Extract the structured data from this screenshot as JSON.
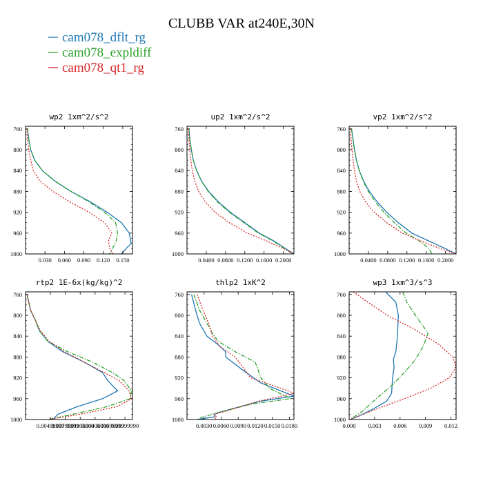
{
  "figure": {
    "title": "CLUBB VAR at240E,30N",
    "legend": [
      {
        "label": "cam078_dflt_rg",
        "color": "#1f77b4"
      },
      {
        "label": "cam078_expldiff",
        "color": "#2ca02c"
      },
      {
        "label": "cam078_qt1_rg",
        "color": "#d62728"
      }
    ]
  },
  "chart_data": [
    {
      "type": "line",
      "title": "wp2  1xm^2/s^2",
      "xlim": [
        0.0,
        0.165
      ],
      "ylim": [
        1000,
        755
      ],
      "x_ticks": [
        0.03,
        0.06,
        0.09,
        0.12,
        0.15
      ],
      "x_tick_labels": [
        "0.030",
        "0.060",
        "0.090",
        "0.120",
        "0.150"
      ],
      "y_ticks": [
        760,
        800,
        840,
        880,
        920,
        960,
        1000
      ],
      "series": [
        {
          "name": "cam078_dflt_rg",
          "x": [
            0.003,
            0.005,
            0.008,
            0.014,
            0.026,
            0.045,
            0.07,
            0.1,
            0.126,
            0.148,
            0.16,
            0.163,
            0.155,
            0.148
          ],
          "y": [
            760,
            780,
            800,
            820,
            840,
            860,
            880,
            900,
            920,
            940,
            960,
            980,
            990,
            1000
          ]
        },
        {
          "name": "cam078_expldiff",
          "x": [
            0.003,
            0.005,
            0.008,
            0.014,
            0.026,
            0.045,
            0.07,
            0.098,
            0.122,
            0.139,
            0.142,
            0.14,
            0.134,
            0.13
          ],
          "y": [
            760,
            780,
            800,
            820,
            840,
            860,
            880,
            900,
            920,
            940,
            960,
            975,
            990,
            1000
          ]
        },
        {
          "name": "cam078_qt1_rg",
          "x": [
            0.002,
            0.003,
            0.005,
            0.008,
            0.012,
            0.022,
            0.042,
            0.068,
            0.098,
            0.122,
            0.133,
            0.128,
            0.13,
            0.135
          ],
          "y": [
            760,
            780,
            800,
            820,
            840,
            860,
            880,
            900,
            920,
            940,
            960,
            975,
            990,
            1000
          ]
        }
      ]
    },
    {
      "type": "line",
      "title": "up2  1xm^2/s^2",
      "xlim": [
        0.0,
        0.222
      ],
      "ylim": [
        1000,
        755
      ],
      "x_ticks": [
        0.04,
        0.08,
        0.12,
        0.16,
        0.2
      ],
      "x_tick_labels": [
        "0.0400",
        "0.0800",
        "0.1200",
        "0.1600",
        "0.2000"
      ],
      "y_ticks": [
        760,
        800,
        840,
        880,
        920,
        960,
        1000
      ],
      "series": [
        {
          "name": "cam078_dflt_rg",
          "x": [
            0.004,
            0.006,
            0.009,
            0.013,
            0.02,
            0.03,
            0.045,
            0.065,
            0.09,
            0.12,
            0.15,
            0.18,
            0.205,
            0.222
          ],
          "y": [
            760,
            780,
            800,
            820,
            840,
            860,
            880,
            900,
            920,
            940,
            960,
            975,
            990,
            1000
          ]
        },
        {
          "name": "cam078_expldiff",
          "x": [
            0.004,
            0.006,
            0.009,
            0.013,
            0.02,
            0.03,
            0.044,
            0.063,
            0.088,
            0.118,
            0.148,
            0.178,
            0.203,
            0.22
          ],
          "y": [
            760,
            780,
            800,
            820,
            840,
            860,
            880,
            900,
            920,
            940,
            960,
            975,
            990,
            1000
          ]
        },
        {
          "name": "cam078_qt1_rg",
          "x": [
            0.003,
            0.004,
            0.006,
            0.008,
            0.011,
            0.016,
            0.024,
            0.038,
            0.058,
            0.088,
            0.125,
            0.165,
            0.2,
            0.222
          ],
          "y": [
            760,
            780,
            800,
            820,
            840,
            860,
            880,
            900,
            920,
            940,
            960,
            975,
            990,
            1000
          ]
        }
      ]
    },
    {
      "type": "line",
      "title": "vp2  1xm^2/s^2",
      "xlim": [
        0.0,
        0.222
      ],
      "ylim": [
        1000,
        755
      ],
      "x_ticks": [
        0.04,
        0.08,
        0.12,
        0.16,
        0.2
      ],
      "x_tick_labels": [
        "0.0400",
        "0.0800",
        "0.1200",
        "0.1600",
        "0.2000"
      ],
      "y_ticks": [
        760,
        800,
        840,
        880,
        920,
        960,
        1000
      ],
      "series": [
        {
          "name": "cam078_dflt_rg",
          "x": [
            0.005,
            0.008,
            0.011,
            0.015,
            0.021,
            0.03,
            0.042,
            0.058,
            0.078,
            0.102,
            0.13,
            0.165,
            0.2,
            0.222
          ],
          "y": [
            760,
            780,
            800,
            820,
            840,
            860,
            880,
            900,
            920,
            940,
            960,
            975,
            990,
            1000
          ]
        },
        {
          "name": "cam078_expldiff",
          "x": [
            0.005,
            0.008,
            0.011,
            0.015,
            0.021,
            0.029,
            0.04,
            0.054,
            0.072,
            0.094,
            0.118,
            0.146,
            0.166,
            0.172
          ],
          "y": [
            760,
            780,
            800,
            820,
            840,
            860,
            880,
            900,
            920,
            940,
            960,
            975,
            990,
            1000
          ]
        },
        {
          "name": "cam078_qt1_rg",
          "x": [
            0.003,
            0.004,
            0.006,
            0.008,
            0.011,
            0.015,
            0.022,
            0.034,
            0.052,
            0.078,
            0.11,
            0.148,
            0.19,
            0.222
          ],
          "y": [
            760,
            780,
            800,
            820,
            840,
            860,
            880,
            900,
            920,
            940,
            960,
            975,
            990,
            1000
          ]
        }
      ]
    },
    {
      "type": "line",
      "title": "rtp2  1E-6x(kg/kg)^2",
      "xlim": [
        0.0,
        0.0215
      ],
      "ylim": [
        1000,
        755
      ],
      "x_ticks": [
        0.00499,
        0.00799,
        0.01099,
        0.01399,
        0.01699,
        0.01999
      ],
      "x_tick_labels": [
        "0.00499999",
        "0.00799999",
        "0.01100000",
        "0.01400000",
        "0.01699999",
        "0.01999990"
      ],
      "y_ticks": [
        760,
        800,
        840,
        880,
        920,
        960,
        1000
      ],
      "series": [
        {
          "name": "cam078_dflt_rg",
          "x": [
            0.0003,
            0.001,
            0.002,
            0.0028,
            0.0045,
            0.0075,
            0.0118,
            0.0155,
            0.0165,
            0.0185,
            0.0155,
            0.0105,
            0.0065,
            0.0055
          ],
          "y": [
            760,
            790,
            810,
            830,
            850,
            870,
            890,
            910,
            925,
            945,
            960,
            975,
            990,
            1000
          ]
        },
        {
          "name": "cam078_expldiff",
          "x": [
            0.0003,
            0.001,
            0.002,
            0.0028,
            0.0045,
            0.0085,
            0.0135,
            0.0175,
            0.0198,
            0.0213,
            0.021,
            0.0165,
            0.0095,
            0.0045
          ],
          "y": [
            760,
            790,
            810,
            830,
            850,
            870,
            890,
            910,
            925,
            945,
            960,
            975,
            990,
            1000
          ]
        },
        {
          "name": "cam078_qt1_rg",
          "x": [
            0.0003,
            0.001,
            0.002,
            0.003,
            0.0048,
            0.0078,
            0.0118,
            0.0158,
            0.0188,
            0.0208,
            0.0213,
            0.0185,
            0.011,
            0.0045
          ],
          "y": [
            760,
            790,
            810,
            830,
            850,
            870,
            890,
            910,
            925,
            945,
            960,
            975,
            990,
            1000
          ]
        }
      ]
    },
    {
      "type": "line",
      "title": "thlp2  1xK^2",
      "xlim": [
        0.0,
        0.0188
      ],
      "ylim": [
        1000,
        755
      ],
      "x_ticks": [
        0.003,
        0.006,
        0.009,
        0.012,
        0.015,
        0.018
      ],
      "x_tick_labels": [
        "0.0030",
        "0.0060",
        "0.0090",
        "0.0120",
        "0.0150",
        "0.0180"
      ],
      "y_ticks": [
        760,
        800,
        840,
        880,
        920,
        960,
        1000
      ],
      "series": [
        {
          "name": "cam078_dflt_rg",
          "x": [
            0.0008,
            0.0015,
            0.0022,
            0.0035,
            0.0053,
            0.0068,
            0.0068,
            0.0098,
            0.013,
            0.0188,
            0.0128,
            0.006,
            0.0048,
            0.0048,
            0.0018
          ],
          "y": [
            760,
            790,
            815,
            840,
            855,
            870,
            880,
            905,
            930,
            955,
            965,
            985,
            990,
            995,
            1000
          ]
        },
        {
          "name": "cam078_expldiff",
          "x": [
            0.0012,
            0.0022,
            0.0035,
            0.0045,
            0.0055,
            0.0085,
            0.012,
            0.013,
            0.0145,
            0.0182,
            0.0115,
            0.006,
            0.0028,
            0.0018
          ],
          "y": [
            760,
            790,
            815,
            835,
            850,
            870,
            890,
            920,
            940,
            960,
            970,
            985,
            995,
            1000
          ]
        },
        {
          "name": "cam078_qt1_rg",
          "x": [
            0.0018,
            0.0028,
            0.0038,
            0.0045,
            0.0058,
            0.0085,
            0.0112,
            0.0178,
            0.0188,
            0.0125,
            0.0065,
            0.0048,
            0.0052,
            0.0048
          ],
          "y": [
            760,
            790,
            815,
            840,
            860,
            880,
            920,
            945,
            950,
            965,
            985,
            990,
            995,
            1000
          ]
        }
      ]
    },
    {
      "type": "line",
      "title": "wp3  1xm^3/s^3",
      "xlim": [
        0.0,
        0.0126
      ],
      "ylim": [
        1000,
        755
      ],
      "x_ticks": [
        0.0,
        0.003,
        0.006,
        0.009,
        0.012
      ],
      "x_tick_labels": [
        "0.000",
        "0.003",
        "0.006",
        "0.009",
        "0.012"
      ],
      "y_ticks": [
        760,
        800,
        840,
        880,
        920,
        960,
        1000
      ],
      "series": [
        {
          "name": "cam078_dflt_rg",
          "x": [
            0.0043,
            0.0055,
            0.0058,
            0.0057,
            0.0055,
            0.0052,
            0.0053,
            0.0052,
            0.0051,
            0.005,
            0.0044,
            0.0028,
            0.0012,
            0.0001
          ],
          "y": [
            755,
            775,
            800,
            840,
            870,
            885,
            900,
            910,
            925,
            950,
            965,
            980,
            993,
            1000
          ]
        },
        {
          "name": "cam078_expldiff",
          "x": [
            0.0063,
            0.0068,
            0.0078,
            0.0089,
            0.0093,
            0.0087,
            0.0078,
            0.0065,
            0.005,
            0.0032,
            0.0015,
            0.0001
          ],
          "y": [
            755,
            775,
            800,
            825,
            835,
            860,
            885,
            910,
            935,
            960,
            985,
            1000
          ]
        },
        {
          "name": "cam078_qt1_rg",
          "x": [
            0.0005,
            0.0022,
            0.0045,
            0.0075,
            0.0105,
            0.0122,
            0.0126,
            0.0118,
            0.0096,
            0.0065,
            0.0032,
            0.0012,
            0.0001
          ],
          "y": [
            755,
            775,
            800,
            825,
            855,
            880,
            900,
            920,
            940,
            960,
            980,
            993,
            1000
          ]
        }
      ]
    }
  ]
}
